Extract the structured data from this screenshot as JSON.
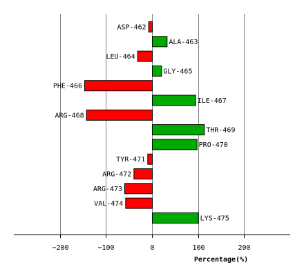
{
  "chart_data": {
    "type": "bar",
    "orientation": "horizontal",
    "xlabel": "Percentage(%)",
    "xlim": [
      -300,
      300
    ],
    "xticks": [
      -200,
      -100,
      0,
      100,
      200
    ],
    "grid": true,
    "colors": {
      "positive": "#00aa00",
      "negative": "#ff0000",
      "border": "#000000",
      "grid": "#808080"
    },
    "categories": [
      "ASP-462",
      "ALA-463",
      "LEU-464",
      "GLY-465",
      "PHE-466",
      "ILE-467",
      "ARG-468",
      "THR-469",
      "PRO-470",
      "TYR-471",
      "ARG-472",
      "ARG-473",
      "VAL-474",
      "LYS-475"
    ],
    "values": [
      -8,
      32,
      -32,
      20,
      -147,
      94,
      -143,
      113,
      97,
      -10,
      -40,
      -60,
      -58,
      100
    ]
  }
}
